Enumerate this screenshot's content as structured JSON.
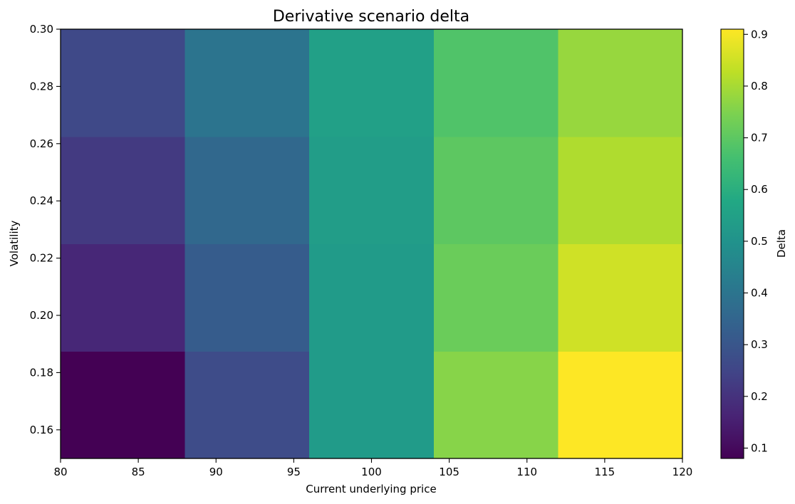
{
  "chart_data": {
    "type": "heatmap",
    "title": "Derivative scenario delta",
    "xlabel": "Current underlying price",
    "ylabel": "Volatility",
    "colorbar_label": "Delta",
    "colormap": "viridis",
    "x_edges": [
      80,
      88,
      96,
      104,
      112,
      120
    ],
    "y_edges": [
      0.15,
      0.1875,
      0.225,
      0.2625,
      0.3
    ],
    "xlim": [
      80,
      120
    ],
    "ylim": [
      0.15,
      0.3
    ],
    "x_ticks": [
      80,
      85,
      90,
      95,
      100,
      105,
      110,
      115,
      120
    ],
    "y_ticks": [
      0.16,
      0.18,
      0.2,
      0.22,
      0.24,
      0.26,
      0.28,
      0.3
    ],
    "x_tick_labels": [
      "80",
      "85",
      "90",
      "95",
      "100",
      "105",
      "110",
      "115",
      "120"
    ],
    "y_tick_labels": [
      "0.16",
      "0.18",
      "0.20",
      "0.22",
      "0.24",
      "0.26",
      "0.28",
      "0.30"
    ],
    "values": [
      [
        0.08,
        0.27,
        0.53,
        0.76,
        0.91
      ],
      [
        0.17,
        0.32,
        0.53,
        0.72,
        0.85
      ],
      [
        0.22,
        0.36,
        0.54,
        0.7,
        0.81
      ],
      [
        0.26,
        0.4,
        0.55,
        0.68,
        0.78
      ]
    ],
    "colorbar_range": [
      0.08,
      0.91
    ],
    "colorbar_ticks": [
      0.1,
      0.2,
      0.3,
      0.4,
      0.5,
      0.6,
      0.7,
      0.8,
      0.9
    ],
    "colorbar_tick_labels": [
      "0.1",
      "0.2",
      "0.3",
      "0.4",
      "0.5",
      "0.6",
      "0.7",
      "0.8",
      "0.9"
    ],
    "grid": false
  }
}
